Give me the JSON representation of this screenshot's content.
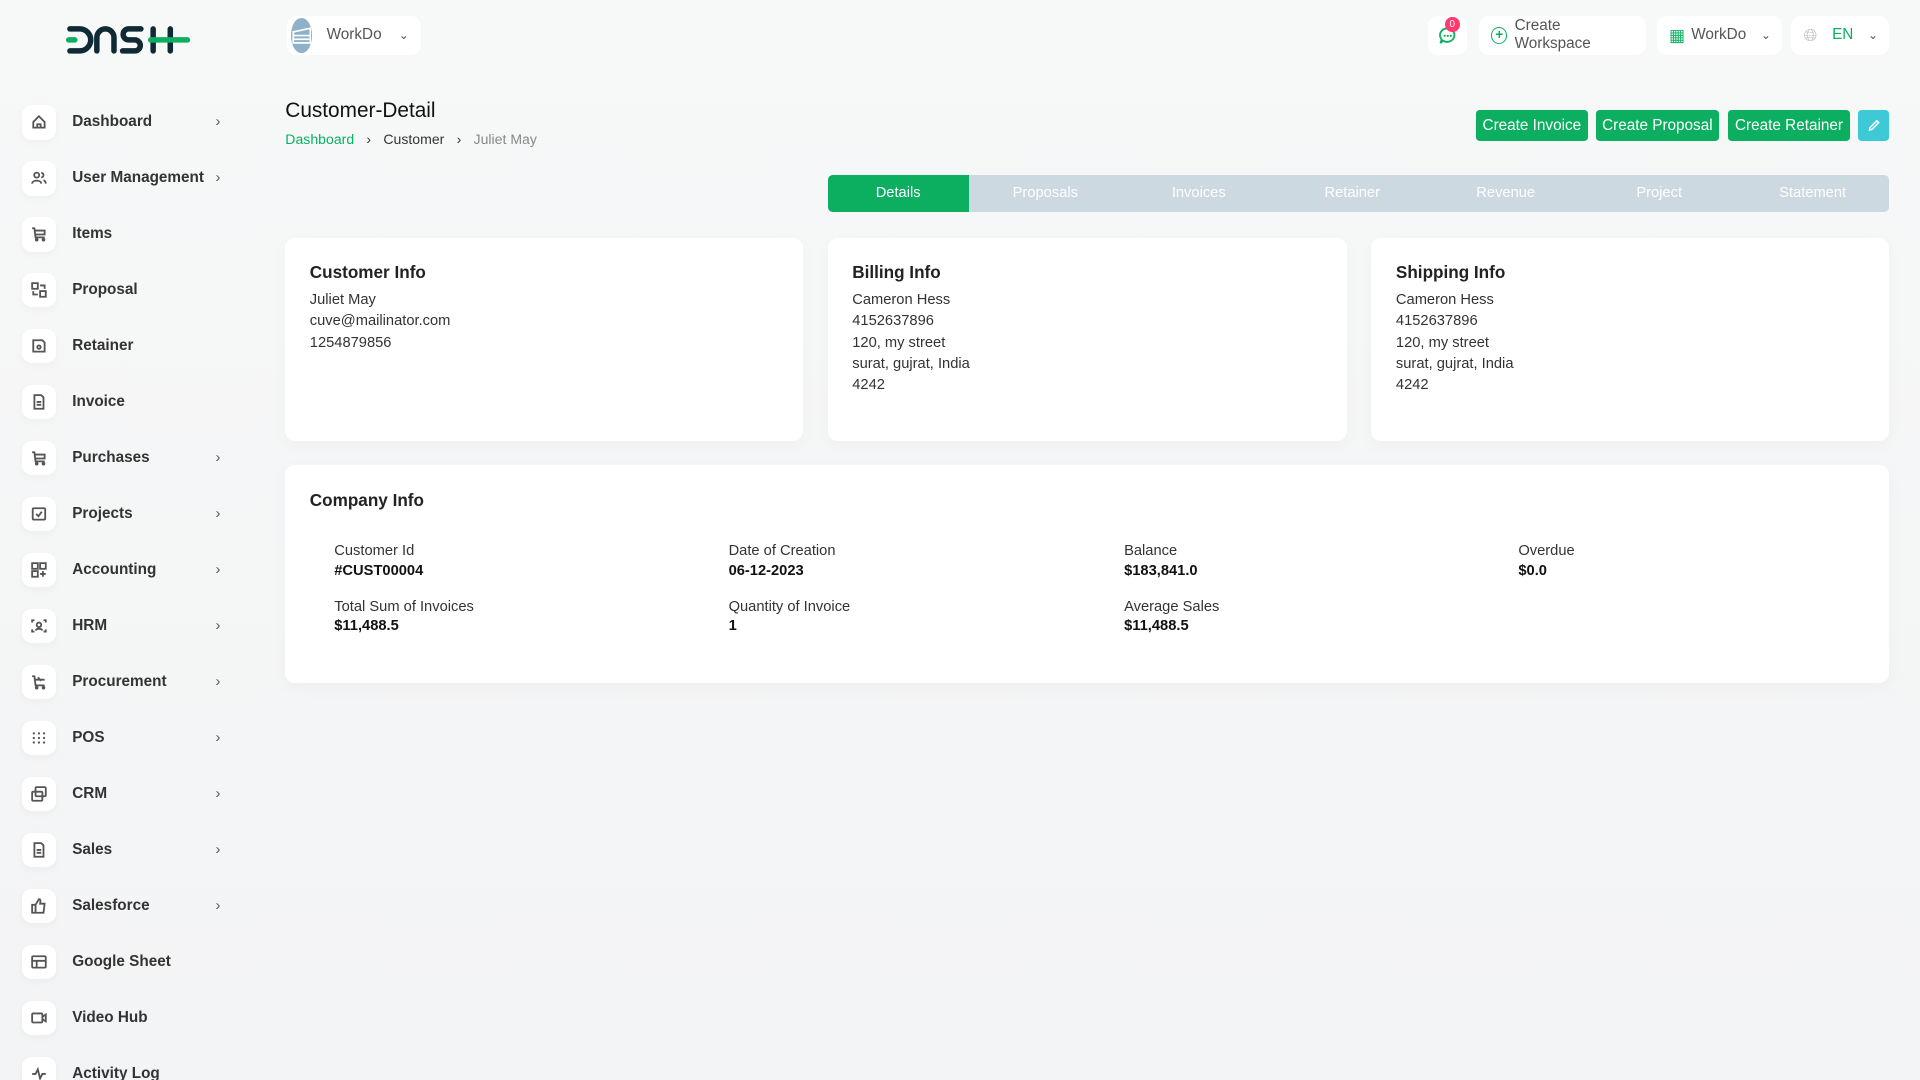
{
  "brand": {
    "logo_text": "DASH",
    "accent": "#0caf60",
    "info": "#3ec9d6"
  },
  "header": {
    "workspace": "WorkDo",
    "notifications": "0",
    "create_workspace": "Create Workspace",
    "workspace_menu": "WorkDo",
    "language": "EN"
  },
  "sidebar": {
    "items": [
      {
        "label": "Dashboard",
        "icon": "home-icon",
        "chevron": true
      },
      {
        "label": "User Management",
        "icon": "users-icon",
        "chevron": true
      },
      {
        "label": "Items",
        "icon": "cart-icon",
        "chevron": false
      },
      {
        "label": "Proposal",
        "icon": "swap-icon",
        "chevron": false
      },
      {
        "label": "Retainer",
        "icon": "floppy-icon",
        "chevron": false
      },
      {
        "label": "Invoice",
        "icon": "file-icon",
        "chevron": false
      },
      {
        "label": "Purchases",
        "icon": "cart-icon",
        "chevron": true
      },
      {
        "label": "Projects",
        "icon": "checkbox-icon",
        "chevron": true
      },
      {
        "label": "Accounting",
        "icon": "apps-icon",
        "chevron": true
      },
      {
        "label": "HRM",
        "icon": "user-focus-icon",
        "chevron": true
      },
      {
        "label": "Procurement",
        "icon": "cart-discount-icon",
        "chevron": true
      },
      {
        "label": "POS",
        "icon": "grid-dots-icon",
        "chevron": true
      },
      {
        "label": "CRM",
        "icon": "layers-icon",
        "chevron": true
      },
      {
        "label": "Sales",
        "icon": "file-icon",
        "chevron": true
      },
      {
        "label": "Salesforce",
        "icon": "thumb-up-icon",
        "chevron": true
      },
      {
        "label": "Google Sheet",
        "icon": "table-icon",
        "chevron": false
      },
      {
        "label": "Video Hub",
        "icon": "video-icon",
        "chevron": false
      },
      {
        "label": "Activity Log",
        "icon": "activity-icon",
        "chevron": false
      }
    ]
  },
  "page": {
    "title": "Customer-Detail",
    "breadcrumb": [
      "Dashboard",
      "Customer",
      "Juliet May"
    ]
  },
  "actions": {
    "create_invoice": "Create Invoice",
    "create_proposal": "Create Proposal",
    "create_retainer": "Create Retainer"
  },
  "tabs": [
    "Details",
    "Proposals",
    "Invoices",
    "Retainer",
    "Revenue",
    "Project",
    "Statement"
  ],
  "customer_info": {
    "title": "Customer Info",
    "lines": [
      "Juliet May",
      "cuve@mailinator.com",
      "1254879856"
    ]
  },
  "billing_info": {
    "title": "Billing Info",
    "lines": [
      "Cameron Hess",
      "4152637896",
      "120, my street",
      "surat, gujrat, India",
      "4242"
    ]
  },
  "shipping_info": {
    "title": "Shipping Info",
    "lines": [
      "Cameron Hess",
      "4152637896",
      "120, my street",
      "surat, gujrat, India",
      "4242"
    ]
  },
  "company_info": {
    "title": "Company Info",
    "fields": [
      {
        "label": "Customer Id",
        "value": "#CUST00004"
      },
      {
        "label": "Date of Creation",
        "value": "06-12-2023"
      },
      {
        "label": "Balance",
        "value": "$183,841.0"
      },
      {
        "label": "Overdue",
        "value": "$0.0"
      },
      {
        "label": "Total Sum of Invoices",
        "value": "$11,488.5"
      },
      {
        "label": "Quantity of Invoice",
        "value": "1"
      },
      {
        "label": "Average Sales",
        "value": "$11,488.5"
      }
    ]
  }
}
